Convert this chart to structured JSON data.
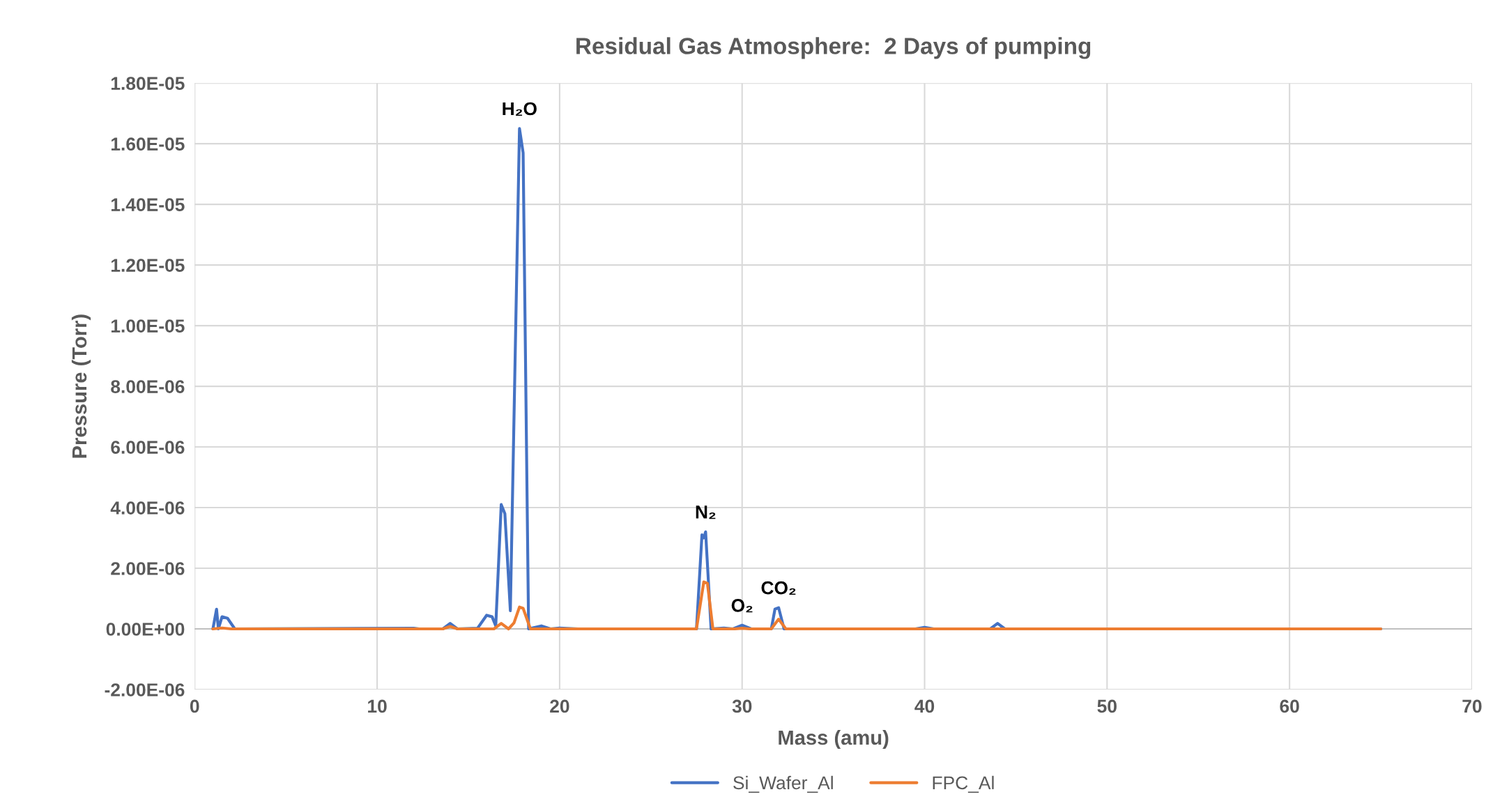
{
  "chart_data": {
    "type": "line",
    "title": "Residual Gas Atmosphere:  2 Days of pumping",
    "xlabel": "Mass (amu)",
    "ylabel": "Pressure (Torr)",
    "series": [
      {
        "name": "Si_Wafer_Al",
        "color": "#4472c4",
        "x": [
          1,
          1.2,
          1.3,
          1.5,
          1.8,
          2.2,
          12,
          12.3,
          13.6,
          14,
          14.4,
          15.5,
          16,
          16.3,
          16.5,
          16.8,
          17,
          17.3,
          17.8,
          18,
          18.3,
          19,
          19.5,
          20,
          21,
          27.5,
          27.8,
          27.9,
          28,
          28.3,
          29,
          29.5,
          30,
          30.5,
          31.6,
          31.8,
          32,
          32.3,
          39.5,
          40,
          40.5,
          43.6,
          44,
          44.4,
          65
        ],
        "values": [
          0,
          6.5e-07,
          0,
          4e-07,
          3.5e-07,
          0,
          2e-08,
          0,
          0,
          1.8e-07,
          0,
          2e-08,
          4.5e-07,
          4e-07,
          1e-07,
          4.1e-06,
          3.8e-06,
          6e-07,
          1.65e-05,
          1.57e-05,
          0,
          1e-07,
          0,
          3e-08,
          0,
          0,
          3.1e-06,
          3e-06,
          3.2e-06,
          0,
          3e-08,
          0,
          1.2e-07,
          0,
          0,
          6.5e-07,
          7e-07,
          0,
          0,
          5e-08,
          0,
          0,
          1.8e-07,
          0,
          0
        ]
      },
      {
        "name": "FPC_Al",
        "color": "#ed7d31",
        "x": [
          1,
          1.5,
          2,
          13.6,
          14,
          14.4,
          16.4,
          16.8,
          17.2,
          17.5,
          17.8,
          18,
          18.4,
          27.5,
          27.9,
          28.1,
          28.4,
          29.6,
          30,
          30.4,
          31.6,
          32,
          32.4,
          65
        ],
        "values": [
          0,
          3e-08,
          0,
          0,
          8e-08,
          0,
          0,
          1.8e-07,
          0,
          2e-07,
          7.2e-07,
          6.8e-07,
          0,
          0,
          1.55e-06,
          1.5e-06,
          0,
          0,
          2e-08,
          0,
          0,
          3.2e-07,
          0,
          0
        ]
      }
    ],
    "xlim": [
      0,
      70
    ],
    "xticks": [
      0,
      10,
      20,
      30,
      40,
      50,
      60,
      70
    ],
    "ylim": [
      -2e-06,
      1.8e-05
    ],
    "yticks": [
      {
        "value": -2e-06,
        "label": "-2.00E-06"
      },
      {
        "value": 0,
        "label": "0.00E+00"
      },
      {
        "value": 2e-06,
        "label": "2.00E-06"
      },
      {
        "value": 4e-06,
        "label": "4.00E-06"
      },
      {
        "value": 6e-06,
        "label": "6.00E-06"
      },
      {
        "value": 8e-06,
        "label": "8.00E-06"
      },
      {
        "value": 1e-05,
        "label": "1.00E-05"
      },
      {
        "value": 1.2e-05,
        "label": "1.20E-05"
      },
      {
        "value": 1.4e-05,
        "label": "1.40E-05"
      },
      {
        "value": 1.6e-05,
        "label": "1.60E-05"
      },
      {
        "value": 1.8e-05,
        "label": "1.80E-05"
      }
    ],
    "annotations": [
      {
        "text": "H₂O",
        "x": 17.8,
        "y": 1.65e-05
      },
      {
        "text": "N₂",
        "x": 28,
        "y": 3.2e-06
      },
      {
        "text": "O₂",
        "x": 30,
        "y": 1.2e-07
      },
      {
        "text": "CO₂",
        "x": 32,
        "y": 7e-07
      }
    ],
    "grid": true,
    "legend": "bottom",
    "marker": "none",
    "line_style": "solid"
  }
}
